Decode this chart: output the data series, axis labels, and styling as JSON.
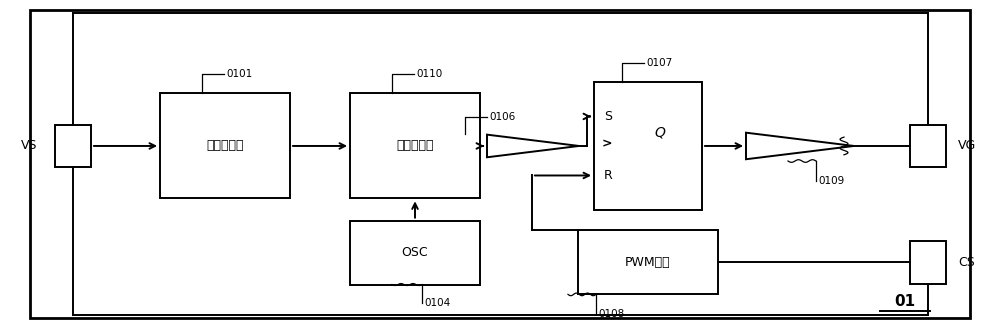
{
  "bg": "#ffffff",
  "lc": "#000000",
  "fig_w": 10.0,
  "fig_h": 3.28,
  "dpi": 100,
  "nhd_label": "负半波检测",
  "fd_label": "固定延时器",
  "osc_label": "OSC",
  "pwm_label": "PWM检测",
  "vs_label": "VS",
  "vg_label": "VG",
  "cs_label": "CS",
  "tag_fs": 7.5,
  "label_fs": 9,
  "label_01": "01"
}
